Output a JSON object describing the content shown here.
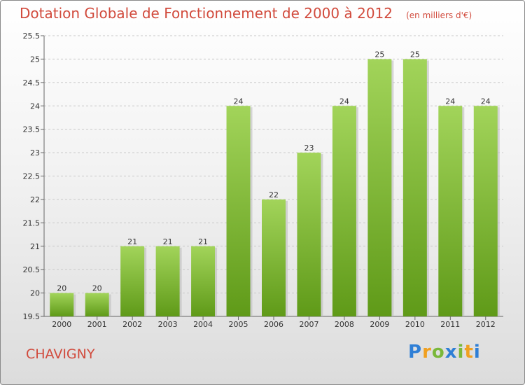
{
  "chart_data": {
    "type": "bar",
    "title": "Dotation Globale de Fonctionnement de 2000 à 2012",
    "subtitle": "(en milliers d'€)",
    "categories": [
      "2000",
      "2001",
      "2002",
      "2003",
      "2004",
      "2005",
      "2006",
      "2007",
      "2008",
      "2009",
      "2010",
      "2011",
      "2012"
    ],
    "values": [
      20,
      20,
      21,
      21,
      21,
      24,
      22,
      23,
      24,
      25,
      25,
      24,
      24
    ],
    "ylim": [
      19.5,
      25.5
    ],
    "yticks": [
      "19.5",
      "20",
      "20.5",
      "21",
      "21.5",
      "22",
      "22.5",
      "23",
      "23.5",
      "24",
      "24.5",
      "25",
      "25.5"
    ],
    "grid": true,
    "colors": {
      "bar_top": "#a2d45a",
      "bar_bottom": "#5f9a18",
      "text_accent": "#d14a3c"
    }
  },
  "place_name": "CHAVIGNY",
  "logo": {
    "text": "Proxiti",
    "letters": [
      "P",
      "r",
      "o",
      "x",
      "i",
      "t",
      "i"
    ],
    "colors": [
      "#2f7fd6",
      "#f0a020",
      "#7ab83a",
      "#2f7fd6",
      "#7ab83a",
      "#f0a020",
      "#2f7fd6"
    ]
  }
}
